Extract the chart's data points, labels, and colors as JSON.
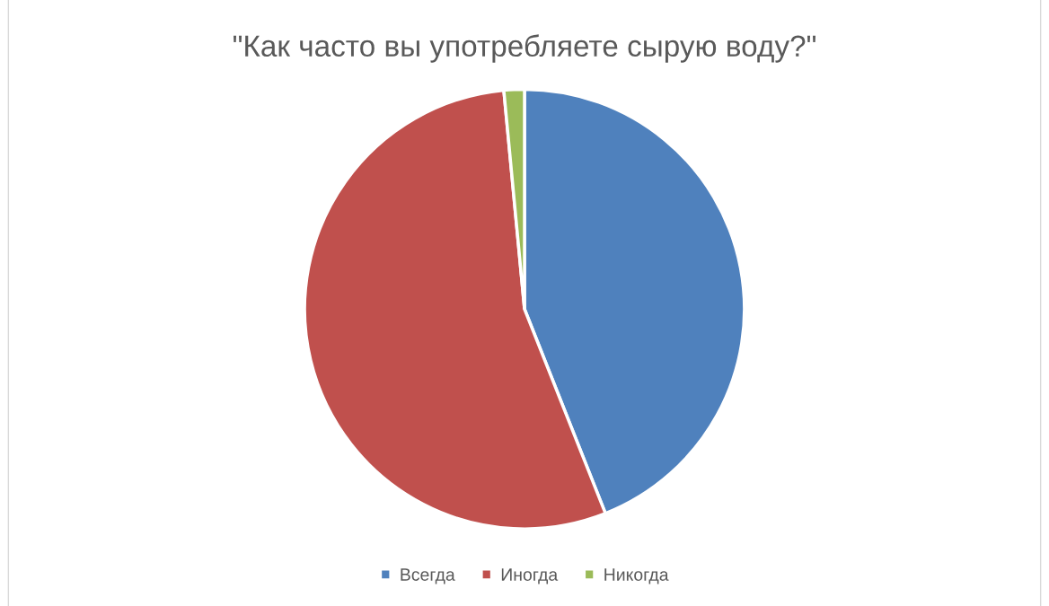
{
  "chart_data": {
    "type": "pie",
    "title": "\"Как часто вы употребляете сырую воду?\"",
    "categories": [
      "Всегда",
      "Иногда",
      "Никогда"
    ],
    "values": [
      44,
      54.5,
      1.5
    ],
    "colors": [
      "#4f81bd",
      "#c0504d",
      "#9bbb59"
    ],
    "legend": "bottom"
  }
}
